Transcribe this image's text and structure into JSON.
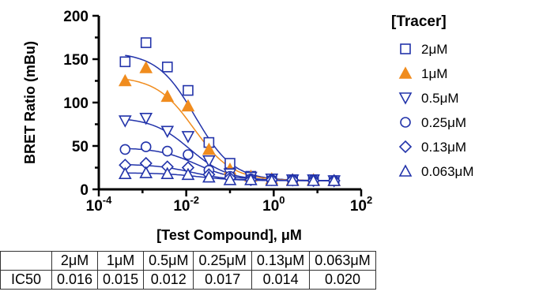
{
  "chart_data": {
    "type": "scatter",
    "ylabel": "BRET Ratio (mBu)",
    "xlabel": "[Test Compound], μM",
    "x_scale": "log",
    "xlim": [
      0.0001,
      100
    ],
    "ylim": [
      0,
      200
    ],
    "y_ticks": [
      "0",
      "50",
      "100",
      "150",
      "200"
    ],
    "x_ticks": [
      {
        "base": "10",
        "exp": "-4"
      },
      {
        "base": "10",
        "exp": "-2"
      },
      {
        "base": "10",
        "exp": "0"
      },
      {
        "base": "10",
        "exp": "2"
      }
    ],
    "x": [
      0.0004,
      0.0012,
      0.0037,
      0.011,
      0.033,
      0.1,
      0.3,
      0.9,
      2.7,
      8.1,
      24
    ],
    "legend_title": "[Tracer]",
    "series": [
      {
        "name": "2μM",
        "marker": "square",
        "color": "#2233aa",
        "filled": false,
        "values": [
          147,
          169,
          141,
          114,
          54,
          30,
          15,
          12,
          11,
          11,
          10
        ],
        "fit_top": 158,
        "fit_bottom": 10,
        "ic50": 0.016
      },
      {
        "name": "1μM",
        "marker": "triangle",
        "color": "#f08c1e",
        "filled": true,
        "values": [
          125,
          140,
          107,
          96,
          46,
          23,
          15,
          12,
          11,
          11,
          10
        ],
        "fit_top": 130,
        "fit_bottom": 10,
        "ic50": 0.015
      },
      {
        "name": "0.5μM",
        "marker": "triangle-down",
        "color": "#2233aa",
        "filled": false,
        "values": [
          79,
          82,
          67,
          61,
          33,
          18,
          14,
          12,
          11,
          11,
          10
        ],
        "fit_top": 83,
        "fit_bottom": 10,
        "ic50": 0.012
      },
      {
        "name": "0.25μM",
        "marker": "circle",
        "color": "#2233aa",
        "filled": false,
        "values": [
          46,
          49,
          44,
          40,
          22,
          15,
          12,
          11,
          11,
          11,
          10
        ],
        "fit_top": 48,
        "fit_bottom": 10,
        "ic50": 0.017
      },
      {
        "name": "0.13μM",
        "marker": "diamond",
        "color": "#2233aa",
        "filled": false,
        "values": [
          28,
          30,
          26,
          25,
          17,
          13,
          11,
          11,
          11,
          10,
          10
        ],
        "fit_top": 29,
        "fit_bottom": 10,
        "ic50": 0.014
      },
      {
        "name": "0.063μM",
        "marker": "triangle",
        "color": "#2233aa",
        "filled": false,
        "values": [
          18,
          19,
          18,
          17,
          14,
          11,
          11,
          10,
          10,
          10,
          10
        ],
        "fit_top": 19,
        "fit_bottom": 10,
        "ic50": 0.02
      }
    ]
  },
  "table": {
    "row_label": "IC50",
    "headers": [
      "2μM",
      "1μM",
      "0.5μM",
      "0.25μM",
      "0.13μM",
      "0.063μM"
    ],
    "values": [
      "0.016",
      "0.015",
      "0.012",
      "0.017",
      "0.014",
      "0.020"
    ]
  }
}
